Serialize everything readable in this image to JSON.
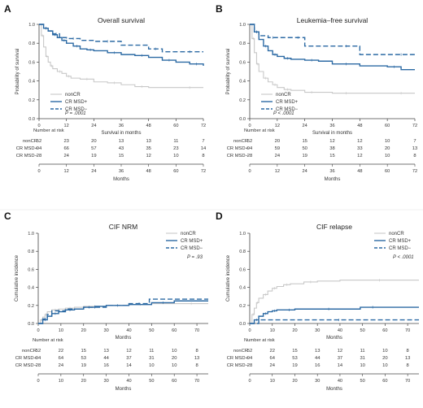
{
  "colors": {
    "nonCR": "#c8c8c8",
    "msd_pos": "#2c6aa4",
    "msd_neg": "#2c6aa4",
    "axis": "#444444"
  },
  "panels": [
    {
      "letter": "A",
      "title": "Overall survival"
    },
    {
      "letter": "B",
      "title": "Leukemia–free survival"
    },
    {
      "letter": "C",
      "title": "CIF NRM"
    },
    {
      "letter": "D",
      "title": "CIF relapse"
    }
  ],
  "chart_data": [
    {
      "type": "line",
      "step": true,
      "title": "Overall survival",
      "xlabel": "Survival in months",
      "ylabel": "Probability of survival",
      "xlim": [
        0,
        72
      ],
      "ylim": [
        0,
        1.0
      ],
      "xticks": [
        0,
        12,
        24,
        36,
        48,
        60,
        72
      ],
      "yticks": [
        0,
        0.2,
        0.4,
        0.6,
        0.8,
        1.0
      ],
      "legend_position": "bottom-left",
      "p_value": "P = .0001",
      "series": [
        {
          "name": "nonCR",
          "x": [
            0,
            1,
            2,
            3,
            4,
            5,
            6,
            8,
            10,
            12,
            14,
            18,
            24,
            30,
            36,
            42,
            48,
            60,
            72
          ],
          "y": [
            1.0,
            0.88,
            0.76,
            0.66,
            0.6,
            0.56,
            0.53,
            0.5,
            0.48,
            0.45,
            0.43,
            0.42,
            0.39,
            0.38,
            0.36,
            0.34,
            0.33,
            0.33,
            0.33
          ]
        },
        {
          "name": "CR MSD+",
          "x": [
            0,
            2,
            4,
            6,
            8,
            10,
            12,
            15,
            18,
            21,
            24,
            30,
            36,
            42,
            48,
            54,
            60,
            66,
            72
          ],
          "y": [
            1.0,
            0.96,
            0.93,
            0.89,
            0.86,
            0.83,
            0.8,
            0.77,
            0.74,
            0.73,
            0.72,
            0.7,
            0.68,
            0.67,
            0.65,
            0.62,
            0.6,
            0.58,
            0.56
          ]
        },
        {
          "name": "CR MSD−",
          "x": [
            0,
            2,
            4,
            6,
            9,
            12,
            18,
            24,
            36,
            48,
            54,
            60,
            72
          ],
          "y": [
            1.0,
            0.96,
            0.93,
            0.9,
            0.86,
            0.85,
            0.83,
            0.82,
            0.78,
            0.74,
            0.71,
            0.71,
            0.71
          ]
        }
      ],
      "risk_table": {
        "header": "Number at risk",
        "xlabel": "Months",
        "times": [
          0,
          12,
          24,
          36,
          48,
          60,
          72
        ],
        "rows": [
          {
            "label": "nonCR",
            "values": [
              "52",
              "23",
              "20",
              "13",
              "13",
              "11",
              "7"
            ]
          },
          {
            "label": "CR MSD+",
            "values": [
              "94",
              "66",
              "57",
              "43",
              "35",
              "23",
              "14"
            ]
          },
          {
            "label": "CR MSD−",
            "values": [
              "28",
              "24",
              "19",
              "15",
              "12",
              "10",
              "8"
            ]
          }
        ]
      }
    },
    {
      "type": "line",
      "step": true,
      "title": "Leukemia–free survival",
      "xlabel": "Survival in months",
      "ylabel": "Probability of survival",
      "xlim": [
        0,
        72
      ],
      "ylim": [
        0,
        1.0
      ],
      "xticks": [
        0,
        12,
        24,
        36,
        48,
        60,
        72
      ],
      "yticks": [
        0,
        0.2,
        0.4,
        0.6,
        0.8,
        1.0
      ],
      "legend_position": "bottom-left",
      "p_value": "P < .0001",
      "series": [
        {
          "name": "nonCR",
          "x": [
            0,
            1,
            2,
            3,
            4,
            6,
            8,
            10,
            12,
            15,
            18,
            24,
            30,
            36,
            48,
            60,
            72
          ],
          "y": [
            1.0,
            0.85,
            0.7,
            0.58,
            0.5,
            0.43,
            0.39,
            0.36,
            0.33,
            0.31,
            0.3,
            0.28,
            0.28,
            0.27,
            0.27,
            0.27,
            0.27
          ]
        },
        {
          "name": "CR MSD+",
          "x": [
            0,
            2,
            4,
            6,
            8,
            10,
            12,
            15,
            18,
            24,
            30,
            36,
            48,
            60,
            66,
            72
          ],
          "y": [
            1.0,
            0.92,
            0.84,
            0.77,
            0.72,
            0.68,
            0.66,
            0.64,
            0.63,
            0.62,
            0.61,
            0.58,
            0.56,
            0.55,
            0.52,
            0.52
          ]
        },
        {
          "name": "CR MSD−",
          "x": [
            0,
            2,
            4,
            8,
            12,
            18,
            24,
            36,
            48,
            60,
            72
          ],
          "y": [
            1.0,
            0.92,
            0.88,
            0.86,
            0.86,
            0.86,
            0.77,
            0.77,
            0.68,
            0.68,
            0.68
          ]
        }
      ],
      "risk_table": {
        "header": "Number at risk",
        "xlabel": "Months",
        "times": [
          0,
          12,
          24,
          36,
          48,
          60,
          72
        ],
        "rows": [
          {
            "label": "nonCR",
            "values": [
              "52",
              "20",
              "15",
              "12",
              "12",
              "10",
              "7"
            ]
          },
          {
            "label": "CR MSD+",
            "values": [
              "94",
              "59",
              "50",
              "38",
              "33",
              "20",
              "13"
            ]
          },
          {
            "label": "CR MSD−",
            "values": [
              "28",
              "24",
              "19",
              "15",
              "12",
              "10",
              "8"
            ]
          }
        ]
      }
    },
    {
      "type": "line",
      "step": true,
      "title": "CIF NRM",
      "xlabel": "Months",
      "ylabel": "Cumulative incidence",
      "xlim": [
        0,
        75
      ],
      "ylim": [
        0,
        1.0
      ],
      "xticks": [
        0,
        10,
        20,
        30,
        40,
        50,
        60,
        70
      ],
      "yticks": [
        0,
        0.2,
        0.4,
        0.6,
        0.8,
        1.0
      ],
      "legend_position": "top-right",
      "p_value": "P = .93",
      "series": [
        {
          "name": "nonCR",
          "x": [
            0,
            1,
            2,
            3,
            4,
            6,
            9,
            12,
            16,
            20,
            30,
            40,
            50,
            60,
            75
          ],
          "y": [
            0,
            0.04,
            0.07,
            0.1,
            0.13,
            0.15,
            0.16,
            0.17,
            0.18,
            0.19,
            0.2,
            0.21,
            0.22,
            0.22,
            0.22
          ]
        },
        {
          "name": "CR MSD+",
          "x": [
            0,
            2,
            4,
            6,
            9,
            12,
            16,
            20,
            25,
            30,
            40,
            50,
            60,
            75
          ],
          "y": [
            0,
            0.04,
            0.08,
            0.11,
            0.13,
            0.15,
            0.16,
            0.18,
            0.19,
            0.2,
            0.21,
            0.23,
            0.25,
            0.25
          ]
        },
        {
          "name": "CR MSD−",
          "x": [
            0,
            2,
            4,
            6,
            12,
            20,
            30,
            40,
            49,
            75
          ],
          "y": [
            0,
            0.05,
            0.1,
            0.14,
            0.16,
            0.18,
            0.2,
            0.22,
            0.27,
            0.27
          ]
        }
      ],
      "risk_table": {
        "header": "Number at risk",
        "xlabel": "Months",
        "times": [
          0,
          10,
          20,
          30,
          40,
          50,
          60,
          70
        ],
        "rows": [
          {
            "label": "nonCR",
            "values": [
              "52",
              "22",
              "15",
              "13",
              "12",
              "11",
              "10",
              "8"
            ]
          },
          {
            "label": "CR MSD+",
            "values": [
              "94",
              "64",
              "53",
              "44",
              "37",
              "31",
              "20",
              "13"
            ]
          },
          {
            "label": "CR MSD−",
            "values": [
              "28",
              "24",
              "19",
              "16",
              "14",
              "10",
              "10",
              "8"
            ]
          }
        ]
      }
    },
    {
      "type": "line",
      "step": true,
      "title": "CIF relapse",
      "xlabel": "Months",
      "ylabel": "Cumulative incidence",
      "xlim": [
        0,
        75
      ],
      "ylim": [
        0,
        1.0
      ],
      "xticks": [
        0,
        10,
        20,
        30,
        40,
        50,
        60,
        70
      ],
      "yticks": [
        0,
        0.2,
        0.4,
        0.6,
        0.8,
        1.0
      ],
      "legend_position": "top-right",
      "p_value": "P < .0001",
      "series": [
        {
          "name": "nonCR",
          "x": [
            0,
            1,
            2,
            3,
            4,
            6,
            8,
            10,
            12,
            15,
            18,
            24,
            30,
            40,
            75
          ],
          "y": [
            0,
            0.1,
            0.17,
            0.23,
            0.28,
            0.32,
            0.36,
            0.39,
            0.41,
            0.43,
            0.44,
            0.46,
            0.47,
            0.48,
            0.48
          ]
        },
        {
          "name": "CR MSD+",
          "x": [
            0,
            2,
            4,
            6,
            8,
            10,
            12,
            15,
            20,
            30,
            40,
            49,
            60,
            75
          ],
          "y": [
            0,
            0.04,
            0.08,
            0.11,
            0.13,
            0.14,
            0.15,
            0.15,
            0.16,
            0.16,
            0.16,
            0.18,
            0.18,
            0.18
          ]
        },
        {
          "name": "CR MSD−",
          "x": [
            0,
            4,
            75
          ],
          "y": [
            0,
            0.04,
            0.04
          ]
        }
      ],
      "risk_table": {
        "header": "Number at risk",
        "xlabel": "Months",
        "times": [
          0,
          10,
          20,
          30,
          40,
          50,
          60,
          70
        ],
        "rows": [
          {
            "label": "nonCR",
            "values": [
              "52",
              "22",
              "15",
              "13",
              "12",
              "11",
              "10",
              "8"
            ]
          },
          {
            "label": "CR MSD+",
            "values": [
              "94",
              "64",
              "53",
              "44",
              "37",
              "31",
              "20",
              "13"
            ]
          },
          {
            "label": "CR MSD−",
            "values": [
              "28",
              "24",
              "19",
              "16",
              "14",
              "10",
              "10",
              "8"
            ]
          }
        ]
      }
    }
  ]
}
